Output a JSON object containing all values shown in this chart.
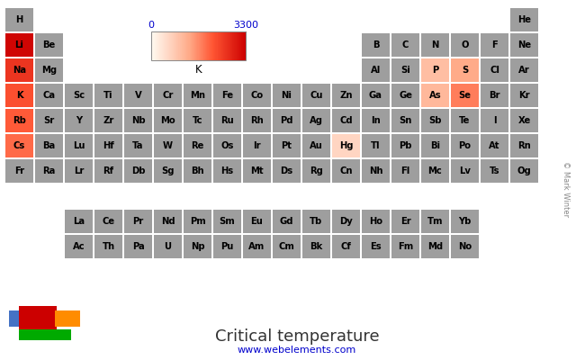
{
  "title": "Critical temperature",
  "subtitle": "www.webelements.com",
  "colorbar_label": "K",
  "colorbar_min": 0,
  "colorbar_max": 3300,
  "background_color": "#ffffff",
  "elements": [
    {
      "symbol": "H",
      "row": 0,
      "col": 0,
      "value": null
    },
    {
      "symbol": "He",
      "row": 0,
      "col": 17,
      "value": null
    },
    {
      "symbol": "Li",
      "row": 1,
      "col": 0,
      "value": 3223
    },
    {
      "symbol": "Be",
      "row": 1,
      "col": 1,
      "value": null
    },
    {
      "symbol": "B",
      "row": 1,
      "col": 12,
      "value": null
    },
    {
      "symbol": "C",
      "row": 1,
      "col": 13,
      "value": null
    },
    {
      "symbol": "N",
      "row": 1,
      "col": 14,
      "value": null
    },
    {
      "symbol": "O",
      "row": 1,
      "col": 15,
      "value": null
    },
    {
      "symbol": "F",
      "row": 1,
      "col": 16,
      "value": null
    },
    {
      "symbol": "Ne",
      "row": 1,
      "col": 17,
      "value": null
    },
    {
      "symbol": "Na",
      "row": 2,
      "col": 0,
      "value": 2573
    },
    {
      "symbol": "Mg",
      "row": 2,
      "col": 1,
      "value": null
    },
    {
      "symbol": "Al",
      "row": 2,
      "col": 12,
      "value": null
    },
    {
      "symbol": "Si",
      "row": 2,
      "col": 13,
      "value": null
    },
    {
      "symbol": "P",
      "row": 2,
      "col": 14,
      "value": 994
    },
    {
      "symbol": "S",
      "row": 2,
      "col": 15,
      "value": 1314
    },
    {
      "symbol": "Cl",
      "row": 2,
      "col": 16,
      "value": null
    },
    {
      "symbol": "Ar",
      "row": 2,
      "col": 17,
      "value": null
    },
    {
      "symbol": "K",
      "row": 3,
      "col": 0,
      "value": 2223
    },
    {
      "symbol": "Ca",
      "row": 3,
      "col": 1,
      "value": null
    },
    {
      "symbol": "Sc",
      "row": 3,
      "col": 2,
      "value": null
    },
    {
      "symbol": "Ti",
      "row": 3,
      "col": 3,
      "value": null
    },
    {
      "symbol": "V",
      "row": 3,
      "col": 4,
      "value": null
    },
    {
      "symbol": "Cr",
      "row": 3,
      "col": 5,
      "value": null
    },
    {
      "symbol": "Mn",
      "row": 3,
      "col": 6,
      "value": null
    },
    {
      "symbol": "Fe",
      "row": 3,
      "col": 7,
      "value": null
    },
    {
      "symbol": "Co",
      "row": 3,
      "col": 8,
      "value": null
    },
    {
      "symbol": "Ni",
      "row": 3,
      "col": 9,
      "value": null
    },
    {
      "symbol": "Cu",
      "row": 3,
      "col": 10,
      "value": null
    },
    {
      "symbol": "Zn",
      "row": 3,
      "col": 11,
      "value": null
    },
    {
      "symbol": "Ga",
      "row": 3,
      "col": 12,
      "value": null
    },
    {
      "symbol": "Ge",
      "row": 3,
      "col": 13,
      "value": null
    },
    {
      "symbol": "As",
      "row": 3,
      "col": 14,
      "value": 1090
    },
    {
      "symbol": "Se",
      "row": 3,
      "col": 15,
      "value": 1766
    },
    {
      "symbol": "Br",
      "row": 3,
      "col": 16,
      "value": null
    },
    {
      "symbol": "Kr",
      "row": 3,
      "col": 17,
      "value": null
    },
    {
      "symbol": "Rb",
      "row": 4,
      "col": 0,
      "value": 2093
    },
    {
      "symbol": "Sr",
      "row": 4,
      "col": 1,
      "value": null
    },
    {
      "symbol": "Y",
      "row": 4,
      "col": 2,
      "value": null
    },
    {
      "symbol": "Zr",
      "row": 4,
      "col": 3,
      "value": null
    },
    {
      "symbol": "Nb",
      "row": 4,
      "col": 4,
      "value": null
    },
    {
      "symbol": "Mo",
      "row": 4,
      "col": 5,
      "value": null
    },
    {
      "symbol": "Tc",
      "row": 4,
      "col": 6,
      "value": null
    },
    {
      "symbol": "Ru",
      "row": 4,
      "col": 7,
      "value": null
    },
    {
      "symbol": "Rh",
      "row": 4,
      "col": 8,
      "value": null
    },
    {
      "symbol": "Pd",
      "row": 4,
      "col": 9,
      "value": null
    },
    {
      "symbol": "Ag",
      "row": 4,
      "col": 10,
      "value": null
    },
    {
      "symbol": "Cd",
      "row": 4,
      "col": 11,
      "value": null
    },
    {
      "symbol": "In",
      "row": 4,
      "col": 12,
      "value": null
    },
    {
      "symbol": "Sn",
      "row": 4,
      "col": 13,
      "value": null
    },
    {
      "symbol": "Sb",
      "row": 4,
      "col": 14,
      "value": null
    },
    {
      "symbol": "Te",
      "row": 4,
      "col": 15,
      "value": null
    },
    {
      "symbol": "I",
      "row": 4,
      "col": 16,
      "value": null
    },
    {
      "symbol": "Xe",
      "row": 4,
      "col": 17,
      "value": null
    },
    {
      "symbol": "Cs",
      "row": 5,
      "col": 0,
      "value": 1938
    },
    {
      "symbol": "Ba",
      "row": 5,
      "col": 1,
      "value": null
    },
    {
      "symbol": "Lu",
      "row": 5,
      "col": 2,
      "value": null
    },
    {
      "symbol": "Hf",
      "row": 5,
      "col": 3,
      "value": null
    },
    {
      "symbol": "Ta",
      "row": 5,
      "col": 4,
      "value": null
    },
    {
      "symbol": "W",
      "row": 5,
      "col": 5,
      "value": null
    },
    {
      "symbol": "Re",
      "row": 5,
      "col": 6,
      "value": null
    },
    {
      "symbol": "Os",
      "row": 5,
      "col": 7,
      "value": null
    },
    {
      "symbol": "Ir",
      "row": 5,
      "col": 8,
      "value": null
    },
    {
      "symbol": "Pt",
      "row": 5,
      "col": 9,
      "value": null
    },
    {
      "symbol": "Au",
      "row": 5,
      "col": 10,
      "value": null
    },
    {
      "symbol": "Hg",
      "row": 5,
      "col": 11,
      "value": 630
    },
    {
      "symbol": "Tl",
      "row": 5,
      "col": 12,
      "value": null
    },
    {
      "symbol": "Pb",
      "row": 5,
      "col": 13,
      "value": null
    },
    {
      "symbol": "Bi",
      "row": 5,
      "col": 14,
      "value": null
    },
    {
      "symbol": "Po",
      "row": 5,
      "col": 15,
      "value": null
    },
    {
      "symbol": "At",
      "row": 5,
      "col": 16,
      "value": null
    },
    {
      "symbol": "Rn",
      "row": 5,
      "col": 17,
      "value": null
    },
    {
      "symbol": "Fr",
      "row": 6,
      "col": 0,
      "value": null
    },
    {
      "symbol": "Ra",
      "row": 6,
      "col": 1,
      "value": null
    },
    {
      "symbol": "Lr",
      "row": 6,
      "col": 2,
      "value": null
    },
    {
      "symbol": "Rf",
      "row": 6,
      "col": 3,
      "value": null
    },
    {
      "symbol": "Db",
      "row": 6,
      "col": 4,
      "value": null
    },
    {
      "symbol": "Sg",
      "row": 6,
      "col": 5,
      "value": null
    },
    {
      "symbol": "Bh",
      "row": 6,
      "col": 6,
      "value": null
    },
    {
      "symbol": "Hs",
      "row": 6,
      "col": 7,
      "value": null
    },
    {
      "symbol": "Mt",
      "row": 6,
      "col": 8,
      "value": null
    },
    {
      "symbol": "Ds",
      "row": 6,
      "col": 9,
      "value": null
    },
    {
      "symbol": "Rg",
      "row": 6,
      "col": 10,
      "value": null
    },
    {
      "symbol": "Cn",
      "row": 6,
      "col": 11,
      "value": null
    },
    {
      "symbol": "Nh",
      "row": 6,
      "col": 12,
      "value": null
    },
    {
      "symbol": "Fl",
      "row": 6,
      "col": 13,
      "value": null
    },
    {
      "symbol": "Mc",
      "row": 6,
      "col": 14,
      "value": null
    },
    {
      "symbol": "Lv",
      "row": 6,
      "col": 15,
      "value": null
    },
    {
      "symbol": "Ts",
      "row": 6,
      "col": 16,
      "value": null
    },
    {
      "symbol": "Og",
      "row": 6,
      "col": 17,
      "value": null
    },
    {
      "symbol": "La",
      "row": 8,
      "col": 2,
      "value": null
    },
    {
      "symbol": "Ce",
      "row": 8,
      "col": 3,
      "value": null
    },
    {
      "symbol": "Pr",
      "row": 8,
      "col": 4,
      "value": null
    },
    {
      "symbol": "Nd",
      "row": 8,
      "col": 5,
      "value": null
    },
    {
      "symbol": "Pm",
      "row": 8,
      "col": 6,
      "value": null
    },
    {
      "symbol": "Sm",
      "row": 8,
      "col": 7,
      "value": null
    },
    {
      "symbol": "Eu",
      "row": 8,
      "col": 8,
      "value": null
    },
    {
      "symbol": "Gd",
      "row": 8,
      "col": 9,
      "value": null
    },
    {
      "symbol": "Tb",
      "row": 8,
      "col": 10,
      "value": null
    },
    {
      "symbol": "Dy",
      "row": 8,
      "col": 11,
      "value": null
    },
    {
      "symbol": "Ho",
      "row": 8,
      "col": 12,
      "value": null
    },
    {
      "symbol": "Er",
      "row": 8,
      "col": 13,
      "value": null
    },
    {
      "symbol": "Tm",
      "row": 8,
      "col": 14,
      "value": null
    },
    {
      "symbol": "Yb",
      "row": 8,
      "col": 15,
      "value": null
    },
    {
      "symbol": "Ac",
      "row": 9,
      "col": 2,
      "value": null
    },
    {
      "symbol": "Th",
      "row": 9,
      "col": 3,
      "value": null
    },
    {
      "symbol": "Pa",
      "row": 9,
      "col": 4,
      "value": null
    },
    {
      "symbol": "U",
      "row": 9,
      "col": 5,
      "value": null
    },
    {
      "symbol": "Np",
      "row": 9,
      "col": 6,
      "value": null
    },
    {
      "symbol": "Pu",
      "row": 9,
      "col": 7,
      "value": null
    },
    {
      "symbol": "Am",
      "row": 9,
      "col": 8,
      "value": null
    },
    {
      "symbol": "Cm",
      "row": 9,
      "col": 9,
      "value": null
    },
    {
      "symbol": "Bk",
      "row": 9,
      "col": 10,
      "value": null
    },
    {
      "symbol": "Cf",
      "row": 9,
      "col": 11,
      "value": null
    },
    {
      "symbol": "Es",
      "row": 9,
      "col": 12,
      "value": null
    },
    {
      "symbol": "Fm",
      "row": 9,
      "col": 13,
      "value": null
    },
    {
      "symbol": "Md",
      "row": 9,
      "col": 14,
      "value": null
    },
    {
      "symbol": "No",
      "row": 9,
      "col": 15,
      "value": null
    }
  ],
  "no_data_color": "#9e9e9e",
  "cell_border_color": "#ffffff",
  "font_color": "#000000",
  "colorbar_tick_color": "#0000cc",
  "watermark": "© Mark Winter"
}
